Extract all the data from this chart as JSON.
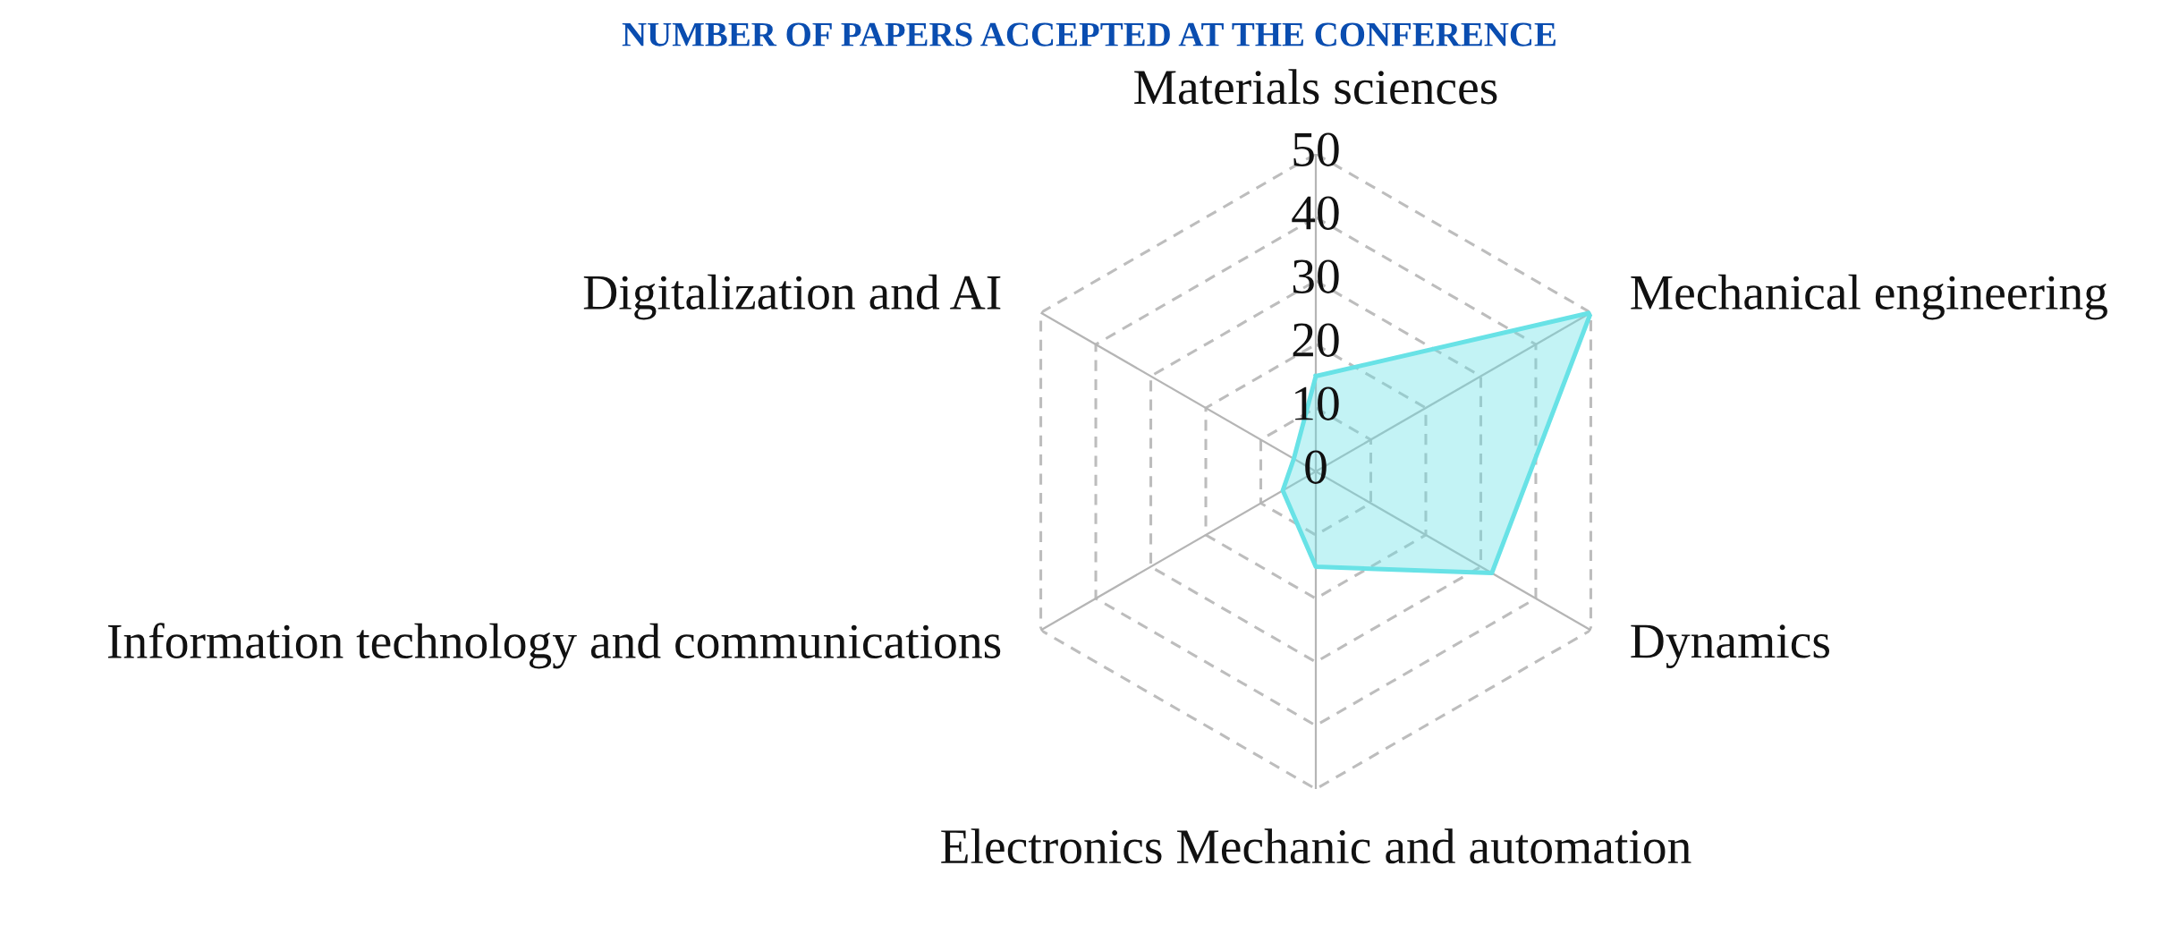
{
  "chart_data": {
    "type": "radar",
    "title": "NUMBER OF PAPERS ACCEPTED AT THE CONFERENCE",
    "categories": [
      "Materials sciences",
      "Mechanical engineering",
      "Dynamics",
      "Electronics Mechanic and automation",
      "Information technology and communications",
      "Digitalization and AI"
    ],
    "series": [
      {
        "color": "#68e2e6",
        "values": [
          15,
          50,
          32,
          15,
          6,
          4
        ]
      }
    ],
    "ylim": [
      0,
      50
    ],
    "yticks": [
      0,
      10,
      20,
      30,
      40,
      50
    ],
    "grid": true
  }
}
